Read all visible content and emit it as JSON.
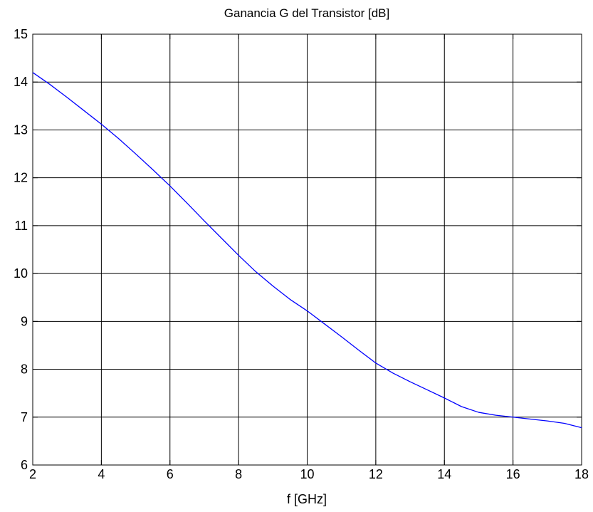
{
  "colors": {
    "background": "#ffffff",
    "axes": "#000000",
    "grid": "#000000",
    "series": "#0000ff"
  },
  "chart_data": {
    "type": "line",
    "title": "Ganancia G del Transistor [dB]",
    "xlabel": "f [GHz]",
    "ylabel": "",
    "xlim": [
      2,
      18
    ],
    "ylim": [
      6,
      15
    ],
    "xticks": [
      "2",
      "4",
      "6",
      "8",
      "10",
      "12",
      "14",
      "16",
      "18"
    ],
    "yticks": [
      "6",
      "7",
      "8",
      "9",
      "10",
      "11",
      "12",
      "13",
      "14",
      "15"
    ],
    "grid": true,
    "legend": "none",
    "series": [
      {
        "x": [
          2,
          2.5,
          3,
          3.5,
          4,
          4.5,
          5,
          5.5,
          6,
          6.5,
          7,
          7.5,
          8,
          8.5,
          9,
          9.5,
          10,
          10.5,
          11,
          11.5,
          12,
          12.5,
          13,
          13.5,
          14,
          14.5,
          15,
          15.5,
          16,
          16.5,
          17,
          17.5,
          18
        ],
        "y": [
          14.2,
          13.95,
          13.68,
          13.4,
          13.12,
          12.82,
          12.5,
          12.17,
          11.83,
          11.47,
          11.1,
          10.74,
          10.38,
          10.04,
          9.74,
          9.46,
          9.22,
          8.95,
          8.68,
          8.4,
          8.13,
          7.92,
          7.74,
          7.57,
          7.4,
          7.22,
          7.1,
          7.04,
          7.0,
          6.96,
          6.92,
          6.87,
          6.78
        ]
      }
    ]
  }
}
